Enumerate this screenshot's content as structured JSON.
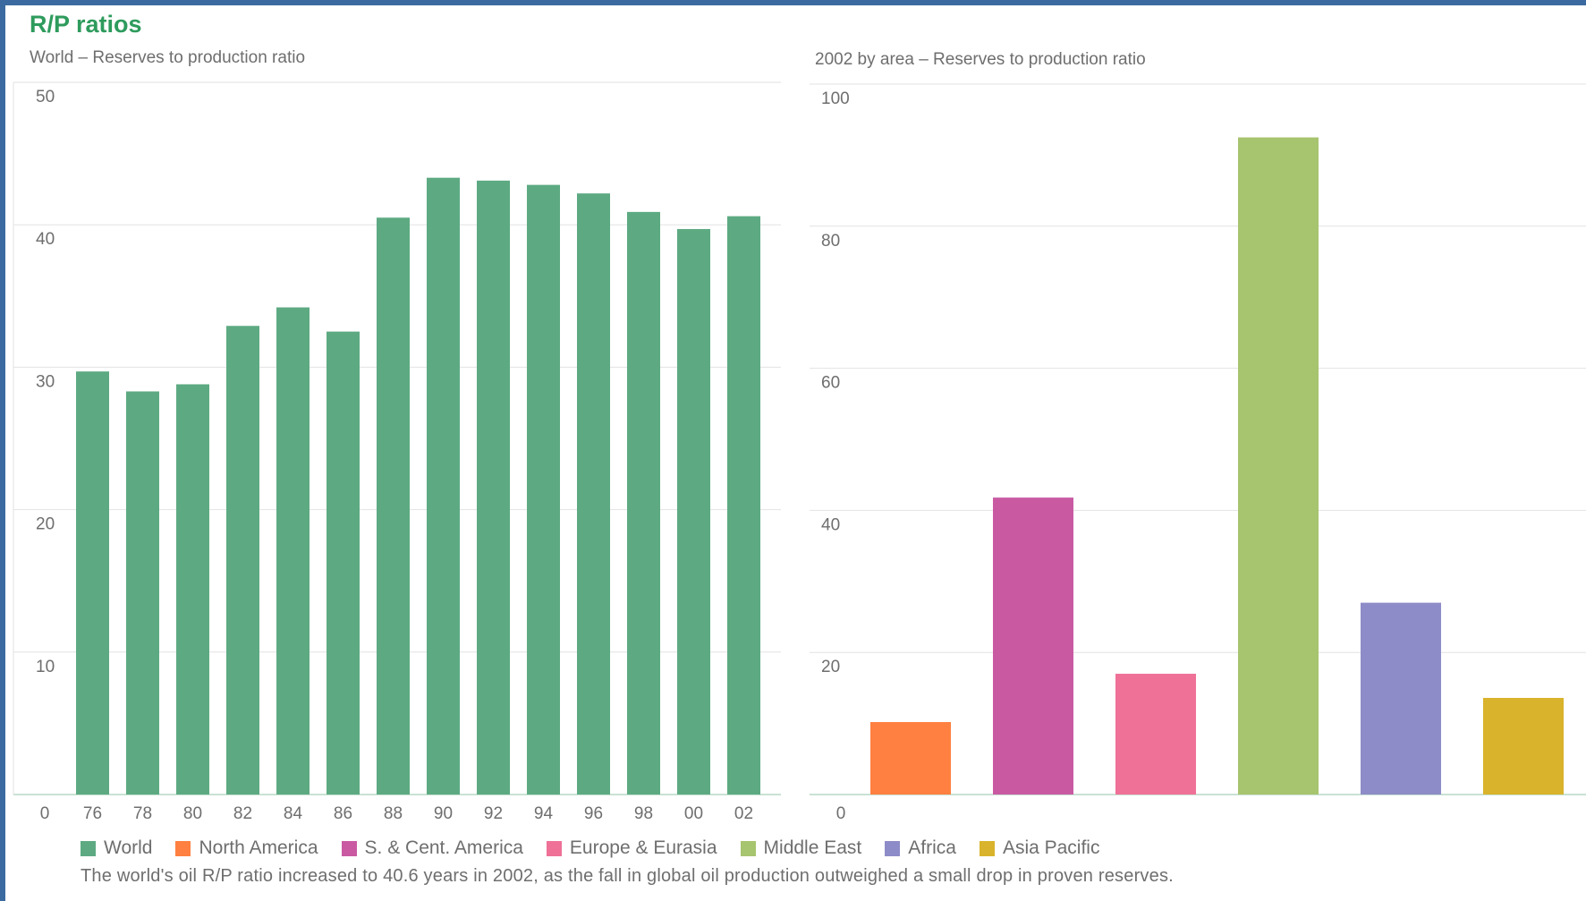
{
  "title": "R/P ratios",
  "caption": "The world's oil R/P ratio increased to 40.6 years in 2002, as the fall in global oil production outweighed a small drop in proven reserves.",
  "legend": [
    {
      "label": "World",
      "color": "#5daa82"
    },
    {
      "label": "North America",
      "color": "#ff8040"
    },
    {
      "label": "S. & Cent. America",
      "color": "#c95aa2"
    },
    {
      "label": "Europe & Eurasia",
      "color": "#ef7198"
    },
    {
      "label": "Middle East",
      "color": "#a7c46f"
    },
    {
      "label": "Africa",
      "color": "#8e8cc8"
    },
    {
      "label": "Asia Pacific",
      "color": "#d9b32b"
    }
  ],
  "chart_data": [
    {
      "type": "bar",
      "subtitle": "World – Reserves to production ratio",
      "categories": [
        "76",
        "78",
        "80",
        "82",
        "84",
        "86",
        "88",
        "90",
        "92",
        "94",
        "96",
        "98",
        "00",
        "02"
      ],
      "values": [
        29.7,
        28.3,
        28.8,
        32.9,
        34.2,
        32.5,
        40.5,
        43.3,
        43.1,
        42.8,
        42.2,
        40.9,
        39.7,
        40.6
      ],
      "yticks": [
        "0",
        "10",
        "20",
        "30",
        "40",
        "50"
      ],
      "ylim": [
        0,
        50
      ],
      "color": "#5daa82",
      "grid": true
    },
    {
      "type": "bar",
      "subtitle": "2002 by area – Reserves to production ratio",
      "categories": [
        "North America",
        "S. & Cent. America",
        "Europe & Eurasia",
        "Middle East",
        "Africa",
        "Asia Pacific"
      ],
      "values": [
        10.2,
        41.8,
        17.0,
        92.5,
        27.0,
        13.6
      ],
      "colors": [
        "#ff8040",
        "#c95aa2",
        "#ef7198",
        "#a7c46f",
        "#8e8cc8",
        "#d9b32b"
      ],
      "yticks": [
        "0",
        "20",
        "40",
        "60",
        "80",
        "100"
      ],
      "ylim": [
        0,
        100
      ],
      "grid": true
    }
  ]
}
